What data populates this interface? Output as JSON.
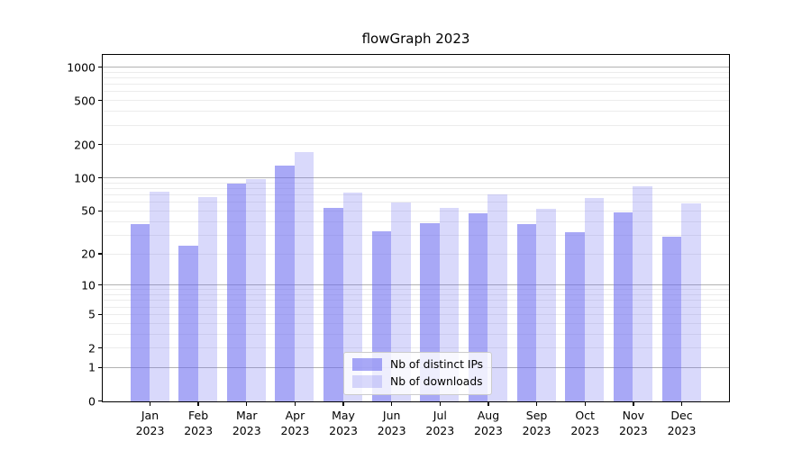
{
  "title": "flowGraph 2023",
  "legend": {
    "items": [
      {
        "label": "Nb of distinct IPs",
        "series": "ips"
      },
      {
        "label": "Nb of downloads",
        "series": "downloads"
      }
    ],
    "position": "lower center"
  },
  "colors": {
    "bar_base": "#6666f0",
    "ips_fill": "rgba(102,102,240,0.57)",
    "downloads_fill": "rgba(102,102,240,0.25)",
    "major_gridline": "#b2b2b2",
    "minor_gridline": "#ececec",
    "axis_line": "#000000",
    "text": "#000000",
    "legend_border": "#cccccc"
  },
  "chart_data": {
    "type": "bar",
    "title": "flowGraph 2023",
    "categories": [
      "Jan 2023",
      "Feb 2023",
      "Mar 2023",
      "Apr 2023",
      "May 2023",
      "Jun 2023",
      "Jul 2023",
      "Aug 2023",
      "Sep 2023",
      "Oct 2023",
      "Nov 2023",
      "Dec 2023"
    ],
    "x_ticks": [
      {
        "month": "Jan",
        "year": "2023"
      },
      {
        "month": "Feb",
        "year": "2023"
      },
      {
        "month": "Mar",
        "year": "2023"
      },
      {
        "month": "Apr",
        "year": "2023"
      },
      {
        "month": "May",
        "year": "2023"
      },
      {
        "month": "Jun",
        "year": "2023"
      },
      {
        "month": "Jul",
        "year": "2023"
      },
      {
        "month": "Aug",
        "year": "2023"
      },
      {
        "month": "Sep",
        "year": "2023"
      },
      {
        "month": "Oct",
        "year": "2023"
      },
      {
        "month": "Nov",
        "year": "2023"
      },
      {
        "month": "Dec",
        "year": "2023"
      }
    ],
    "series": [
      {
        "name": "Nb of distinct IPs",
        "values": [
          38,
          24,
          90,
          130,
          54,
          33,
          39,
          48,
          38,
          32,
          49,
          29
        ]
      },
      {
        "name": "Nb of downloads",
        "values": [
          75,
          67,
          98,
          172,
          74,
          60,
          54,
          71,
          53,
          66,
          84,
          59
        ]
      }
    ],
    "xlabel": "",
    "ylabel": "",
    "y_scale": "log1p",
    "ylim": [
      0,
      1275
    ],
    "y_tick_values": [
      0,
      1,
      2,
      5,
      10,
      20,
      50,
      100,
      200,
      500,
      1000
    ],
    "y_tick_labels": [
      "0",
      "1",
      "2",
      "5",
      "10",
      "20",
      "50",
      "100",
      "200",
      "500",
      "1000"
    ],
    "y_major_gridlines": [
      1,
      10,
      100,
      1000
    ],
    "y_minor_gridlines": [
      2,
      3,
      4,
      5,
      6,
      7,
      8,
      9,
      20,
      30,
      40,
      50,
      60,
      70,
      80,
      90,
      200,
      300,
      400,
      500,
      600,
      700,
      800,
      900
    ],
    "grid": true,
    "legend_position": "lower center"
  }
}
